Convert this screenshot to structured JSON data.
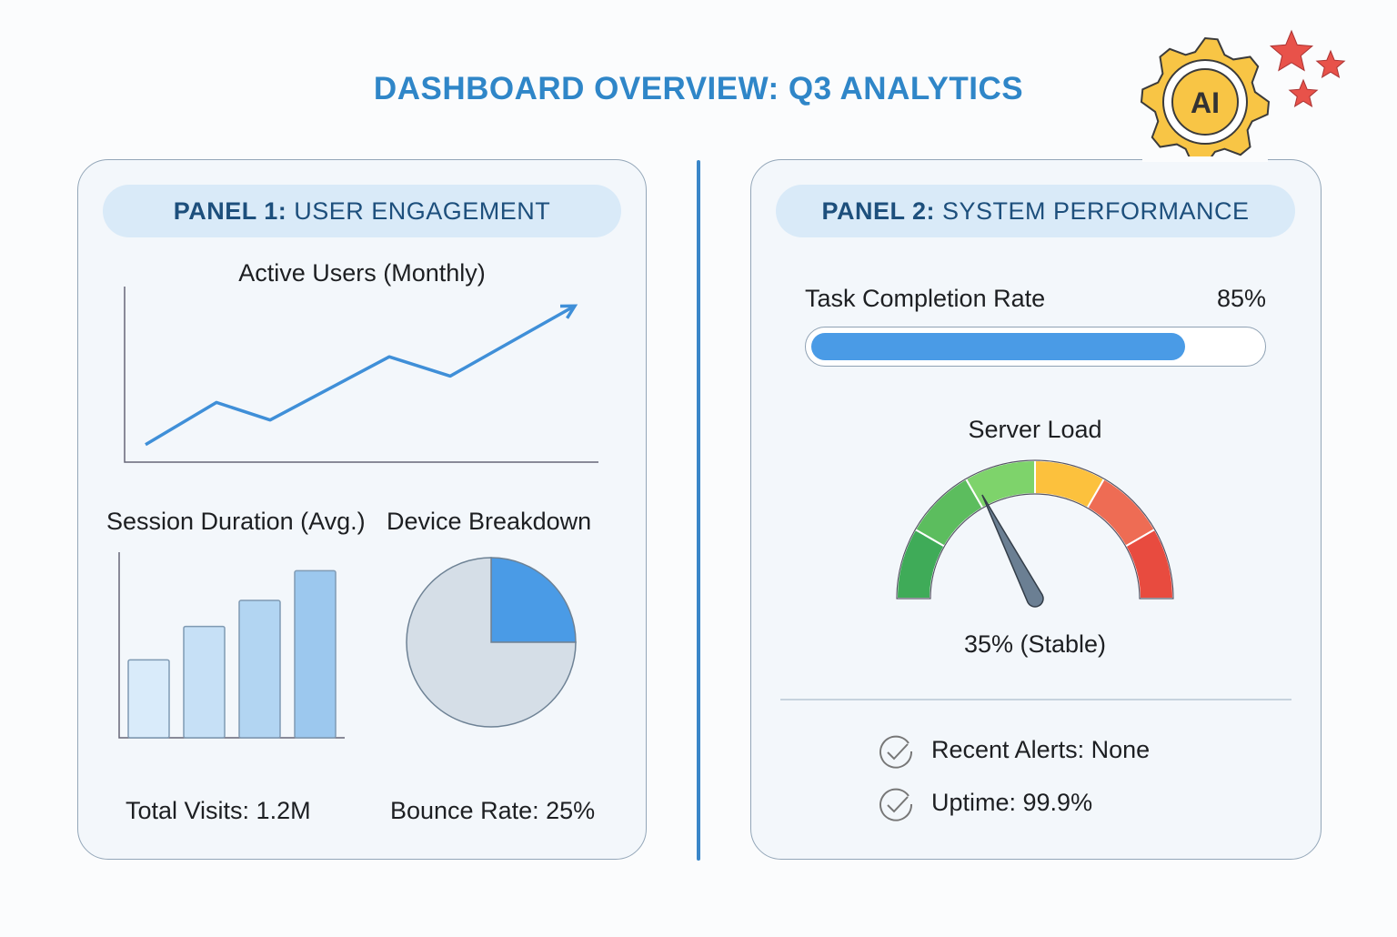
{
  "header": {
    "title": "DASHBOARD OVERVIEW: Q3 ANALYTICS",
    "logo": {
      "icon": "ai-gear-brain-icon",
      "text": "AI",
      "decor": "stars-icon"
    }
  },
  "panel1": {
    "heading_bold": "PANEL 1:",
    "heading_rest": " USER ENGAGEMENT",
    "line_title": "Active Users (Monthly)",
    "bar_title": "Session Duration (Avg.)",
    "pie_title": "Device Breakdown",
    "total_visits": "Total Visits: 1.2M",
    "bounce_rate": "Bounce Rate: 25%"
  },
  "panel2": {
    "heading_bold": "PANEL 2:",
    "heading_rest": " SYSTEM PERFORMANCE",
    "task_label": "Task Completion Rate",
    "task_value": "85%",
    "task_percent": 85,
    "gauge_title": "Server Load",
    "gauge_value_label": "35% (Stable)",
    "gauge_percent": 35,
    "gauge_colors": [
      "#3fab58",
      "#5cbd5e",
      "#7ed36b",
      "#fcc13d",
      "#ee6c54",
      "#e84b3f"
    ],
    "alerts": [
      {
        "icon": "check-circle-icon",
        "text": "Recent Alerts: None"
      },
      {
        "icon": "check-circle-icon",
        "text": "Uptime: 99.9%"
      }
    ]
  },
  "colors": {
    "accent": "#3a86c8",
    "bar_fill": "#4a9be6"
  },
  "chart_data": [
    {
      "type": "line",
      "title": "Active Users (Monthly)",
      "values": [
        10,
        34,
        24,
        60,
        49,
        89
      ],
      "ylim": [
        0,
        100
      ],
      "grid": false,
      "trend_arrow": true
    },
    {
      "type": "bar",
      "title": "Session Duration (Avg.)",
      "values": [
        42,
        60,
        74,
        90
      ],
      "ylim": [
        0,
        100
      ],
      "grid": false
    },
    {
      "type": "pie",
      "title": "Device Breakdown",
      "values": [
        25,
        75
      ],
      "colors": [
        "#4a9be6",
        "#d5dee7"
      ]
    }
  ]
}
